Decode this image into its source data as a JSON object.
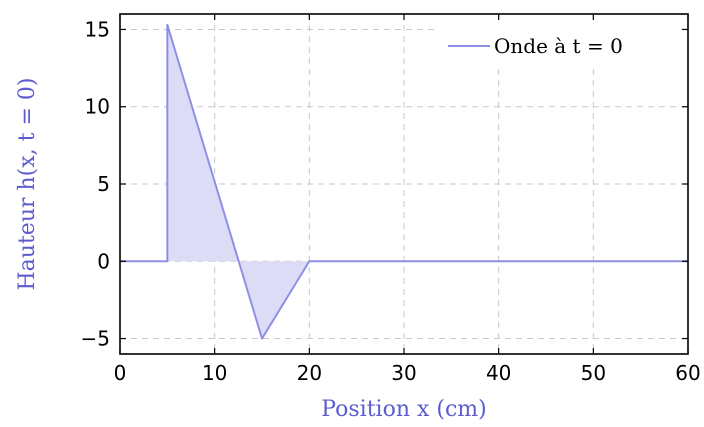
{
  "chart_data": {
    "type": "area",
    "xlabel": "Position   x (cm)",
    "ylabel": "Hauteur   h(x, t = 0)",
    "xlim": [
      0,
      60
    ],
    "ylim": [
      -6,
      16
    ],
    "xticks": [
      0,
      10,
      20,
      30,
      40,
      50,
      60
    ],
    "yticks": [
      -5,
      0,
      5,
      10,
      15
    ],
    "xtick_labels": [
      "0",
      "10",
      "20",
      "30",
      "40",
      "50",
      "60"
    ],
    "ytick_labels": [
      "−5",
      "0",
      "5",
      "10",
      "15"
    ],
    "grid": true,
    "legend_position": "top-right",
    "series": [
      {
        "name": "Onde à   t = 0",
        "color": "#8f8fe6",
        "fill": "#dcdcf6",
        "x": [
          0,
          5,
          5,
          15,
          20,
          60
        ],
        "y": [
          0,
          0,
          15.3,
          -5,
          0,
          0
        ]
      }
    ]
  }
}
